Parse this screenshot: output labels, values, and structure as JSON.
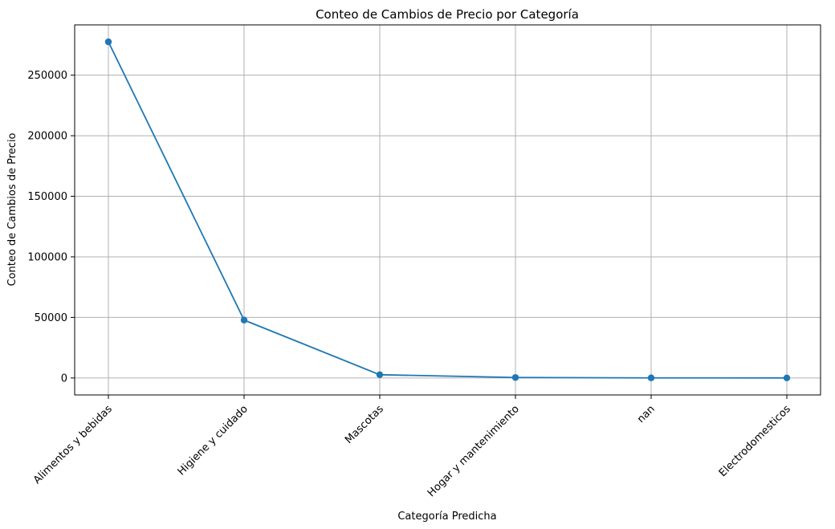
{
  "chart_data": {
    "type": "line",
    "title": "Conteo de Cambios de Precio por Categoría",
    "xlabel": "Categoría Predicha",
    "ylabel": "Conteo de Cambios de Precio",
    "categories": [
      "Alimentos y bebidas",
      "Higiene y cuidado",
      "Mascotas",
      "Hogar y mantenimiento",
      "nan",
      "Electrodomesticos"
    ],
    "series": [
      {
        "values": [
          277500,
          47800,
          2700,
          400,
          100,
          50
        ]
      }
    ],
    "ylim": [
      -14000,
      291500
    ],
    "yticks": [
      0,
      50000,
      100000,
      150000,
      200000,
      250000
    ],
    "ytick_labels": [
      "0",
      "50000",
      "100000",
      "150000",
      "200000",
      "250000"
    ],
    "grid": true,
    "marker": "circle",
    "colors": {
      "line": "#1f77b4",
      "grid": "#b0b0b0",
      "axes": "#000000"
    }
  }
}
